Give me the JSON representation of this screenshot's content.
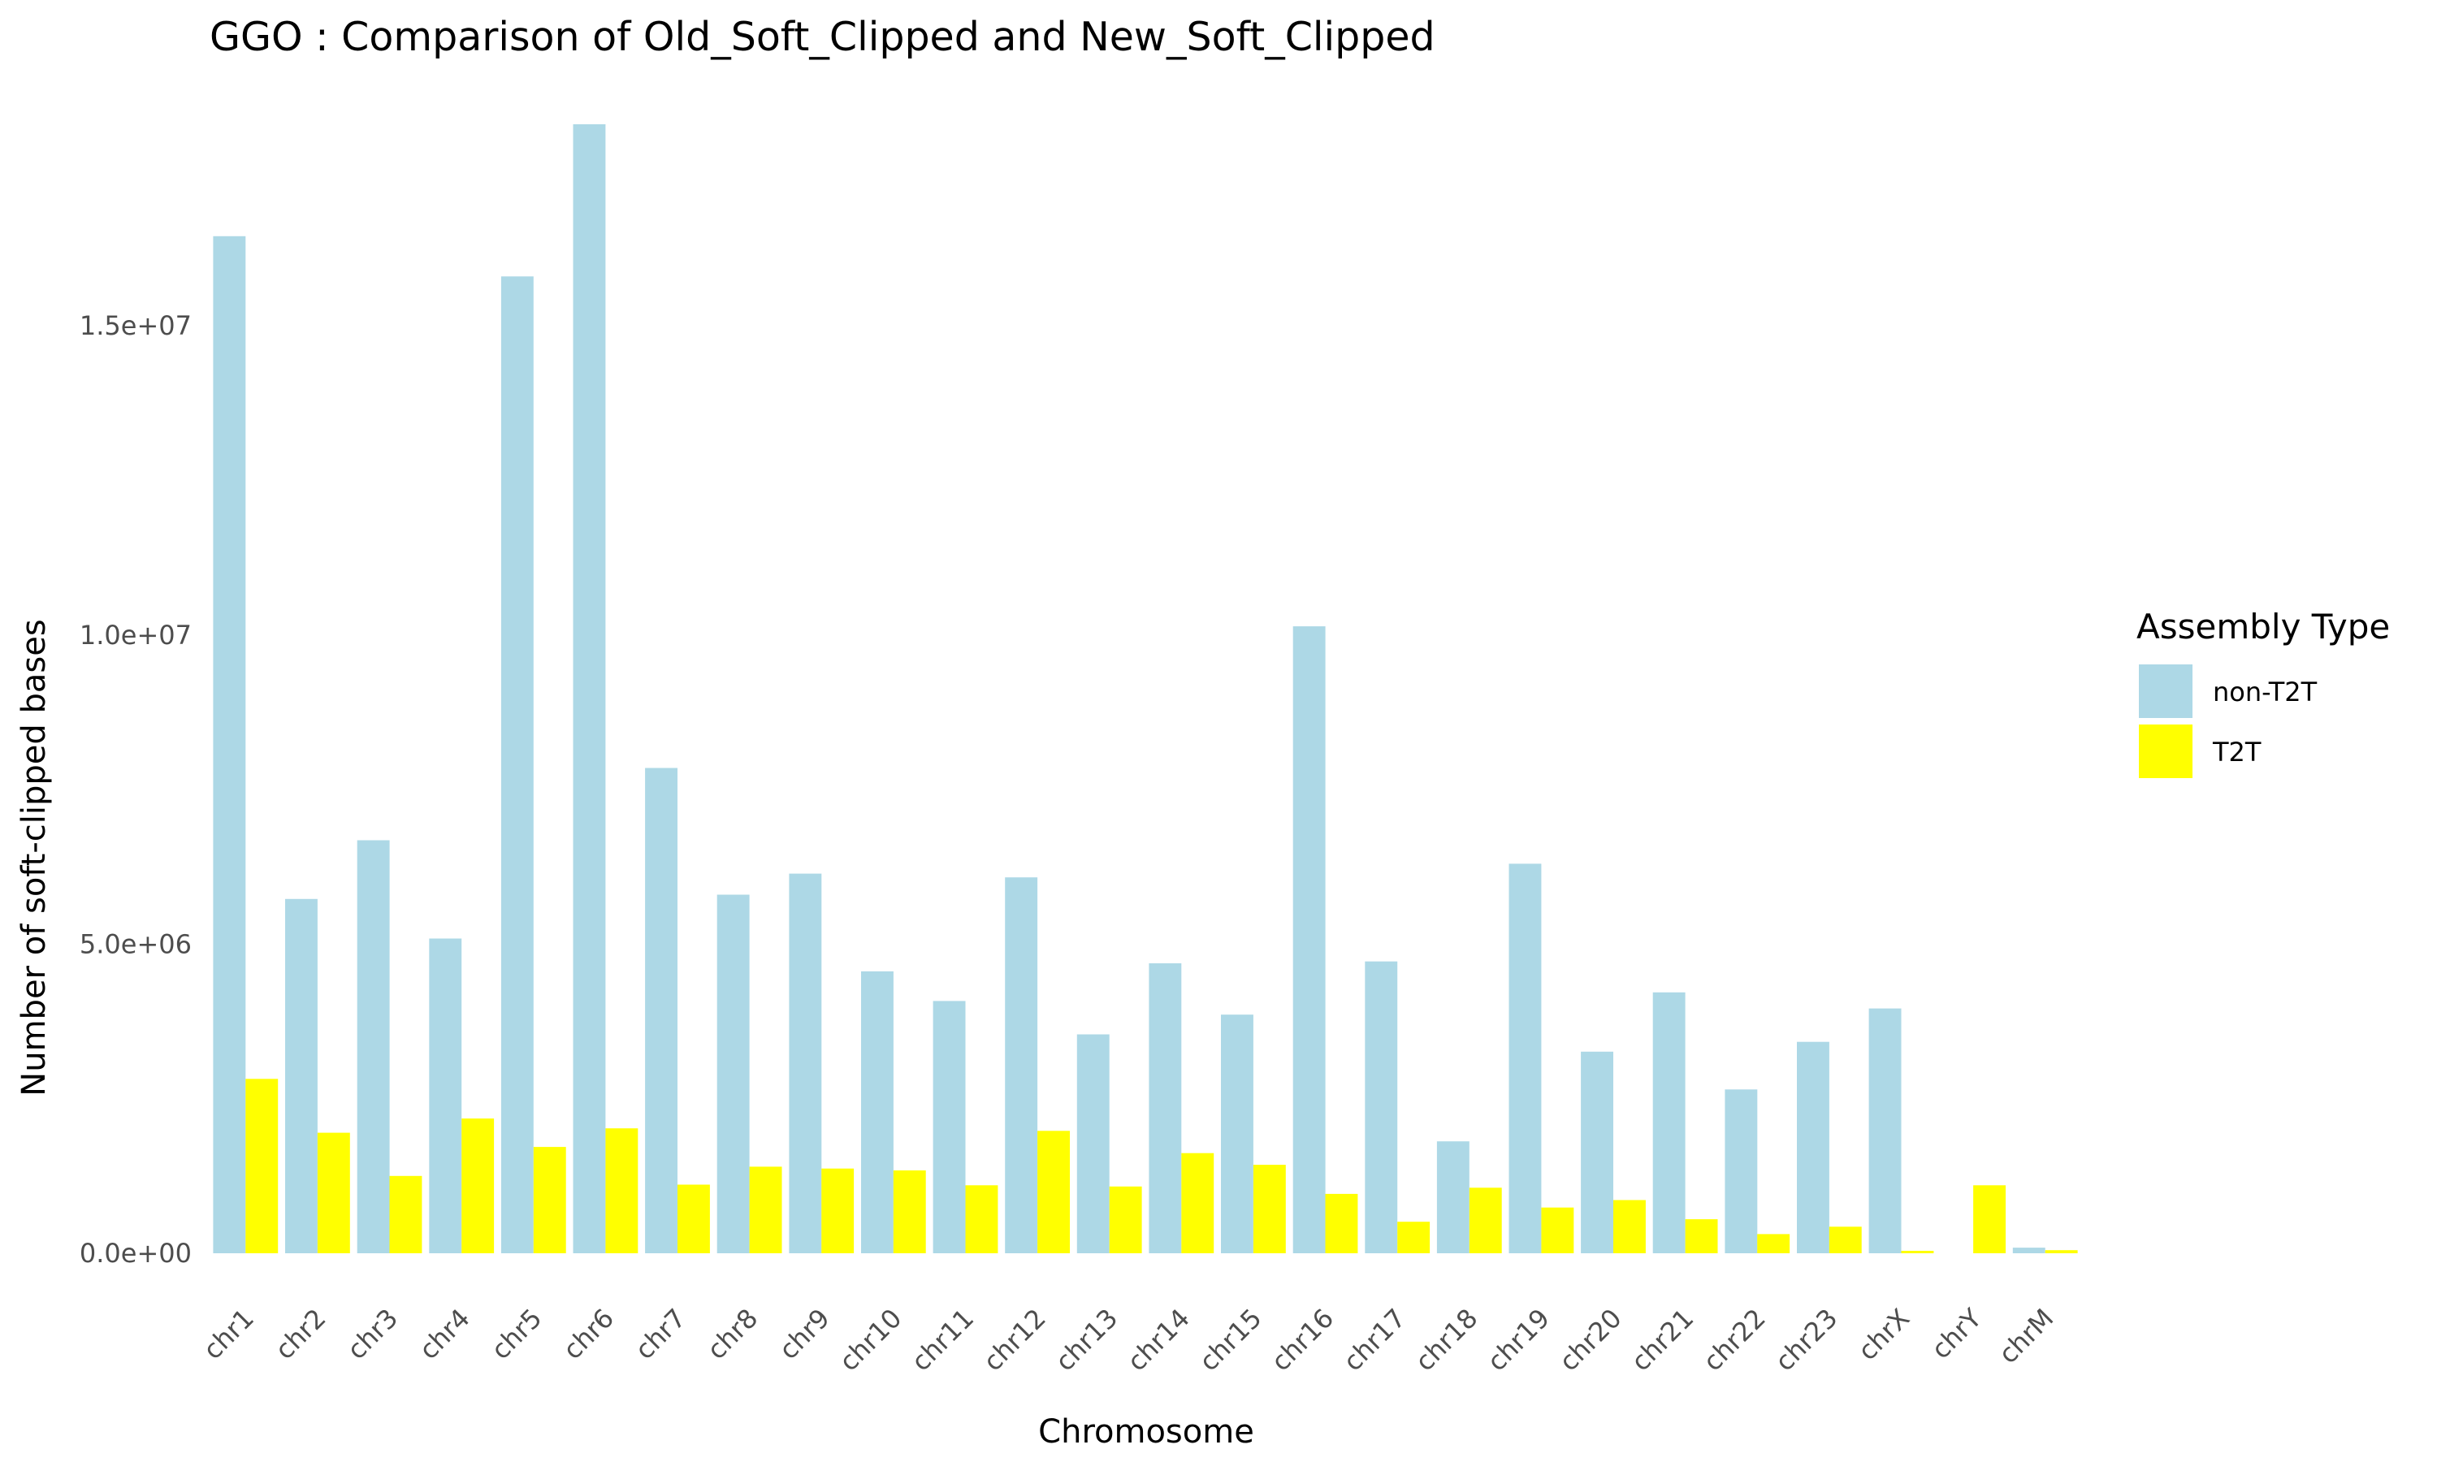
{
  "chart_data": {
    "type": "bar",
    "title": "GGO : Comparison of Old_Soft_Clipped and New_Soft_Clipped",
    "xlabel": "Chromosome",
    "ylabel": "Number of soft-clipped bases",
    "ylim": [
      0,
      18300000
    ],
    "yticks": [
      0,
      5000000,
      10000000,
      15000000
    ],
    "ytick_labels": [
      "0.0e+00",
      "5.0e+06",
      "1.0e+07",
      "1.5e+07"
    ],
    "grid": false,
    "legend_position": "right",
    "legend_title": "Assembly Type",
    "categories": [
      "chr1",
      "chr2",
      "chr3",
      "chr4",
      "chr5",
      "chr6",
      "chr7",
      "chr8",
      "chr9",
      "chr10",
      "chr11",
      "chr12",
      "chr13",
      "chr14",
      "chr15",
      "chr16",
      "chr17",
      "chr18",
      "chr19",
      "chr20",
      "chr21",
      "chr22",
      "chr23",
      "chrX",
      "chrY",
      "chrM"
    ],
    "series": [
      {
        "name": "non-T2T",
        "color": "#add8e6",
        "values": [
          16450000,
          5730000,
          6680000,
          5090000,
          15800000,
          18260000,
          7850000,
          5800000,
          6140000,
          4560000,
          4080000,
          6080000,
          3540000,
          4690000,
          3860000,
          10140000,
          4720000,
          1810000,
          6300000,
          3260000,
          4220000,
          2650000,
          3420000,
          3960000,
          0,
          90000
        ]
      },
      {
        "name": "T2T",
        "color": "#ffff00",
        "values": [
          2820000,
          1950000,
          1250000,
          2180000,
          1720000,
          2020000,
          1110000,
          1400000,
          1370000,
          1340000,
          1100000,
          1980000,
          1080000,
          1620000,
          1430000,
          960000,
          510000,
          1060000,
          740000,
          860000,
          550000,
          310000,
          430000,
          40000,
          1100000,
          50000
        ]
      }
    ]
  }
}
